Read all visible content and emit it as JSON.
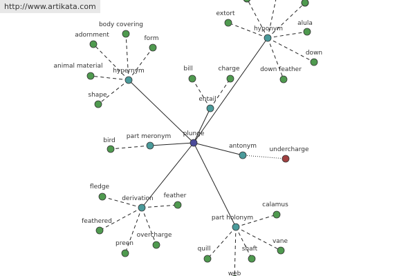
{
  "header": {
    "url": "http://www.artikata.com"
  },
  "nodes": [
    "plunge",
    "hypernym",
    "hyponym",
    "entail",
    "part meronym",
    "antonym",
    "derivation",
    "part holonym",
    "adornment",
    "body covering",
    "form",
    "animal material",
    "shape",
    "extort",
    "alula",
    "down",
    "down feather",
    "bill",
    "charge",
    "bird",
    "undercharge",
    "fledge",
    "feathered",
    "preen",
    "overcharge",
    "feather",
    "calamus",
    "vane",
    "shaft",
    "quill",
    "web"
  ]
}
